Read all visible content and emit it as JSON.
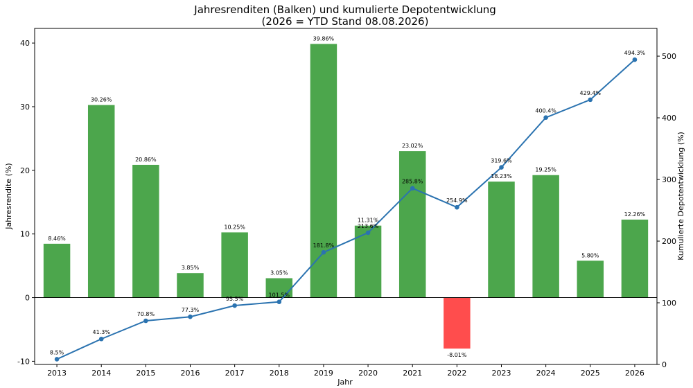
{
  "chart_data": {
    "type": "bar",
    "title": "Jahresrenditen (Balken) und kumulierte Depotentwicklung",
    "subtitle": "(2026 = YTD Stand 08.08.2026)",
    "xlabel": "Jahr",
    "ylabel": "Jahresrendite (%)",
    "y2label": "Kumulierte Depotentwicklung (%)",
    "categories": [
      "2013",
      "2014",
      "2015",
      "2016",
      "2017",
      "2018",
      "2019",
      "2020",
      "2021",
      "2022",
      "2023",
      "2024",
      "2025",
      "2026"
    ],
    "ylim": [
      -10.5,
      42.3
    ],
    "y2lim": [
      0,
      545
    ],
    "yticks": [
      -10,
      0,
      10,
      20,
      30,
      40
    ],
    "y2ticks": [
      0,
      100,
      200,
      300,
      400,
      500
    ],
    "grid": false,
    "series": [
      {
        "type": "bar",
        "axis": "left",
        "values": [
          8.46,
          30.26,
          20.86,
          3.85,
          10.25,
          3.05,
          39.86,
          11.31,
          23.02,
          -8.01,
          18.23,
          19.25,
          5.8,
          12.26
        ],
        "labels": [
          "8.46%",
          "30.26%",
          "20.86%",
          "3.85%",
          "10.25%",
          "3.05%",
          "39.86%",
          "11.31%",
          "23.02%",
          "-8.01%",
          "18.23%",
          "19.25%",
          "5.80%",
          "12.26%"
        ]
      },
      {
        "type": "line",
        "axis": "right",
        "values": [
          8.5,
          41.3,
          70.8,
          77.3,
          95.5,
          101.5,
          181.8,
          213.6,
          285.8,
          254.9,
          319.6,
          400.4,
          429.4,
          494.3
        ],
        "labels": [
          "8.5%",
          "41.3%",
          "70.8%",
          "77.3%",
          "95.5%",
          "101.5%",
          "181.8%",
          "213.6%",
          "285.8%",
          "254.9%",
          "319.6%",
          "400.4%",
          "429.4%",
          "494.3%"
        ]
      }
    ],
    "colors": {
      "positive": "#4ca64c",
      "negative": "#ff4d4d",
      "line": "#2b73b0"
    }
  }
}
